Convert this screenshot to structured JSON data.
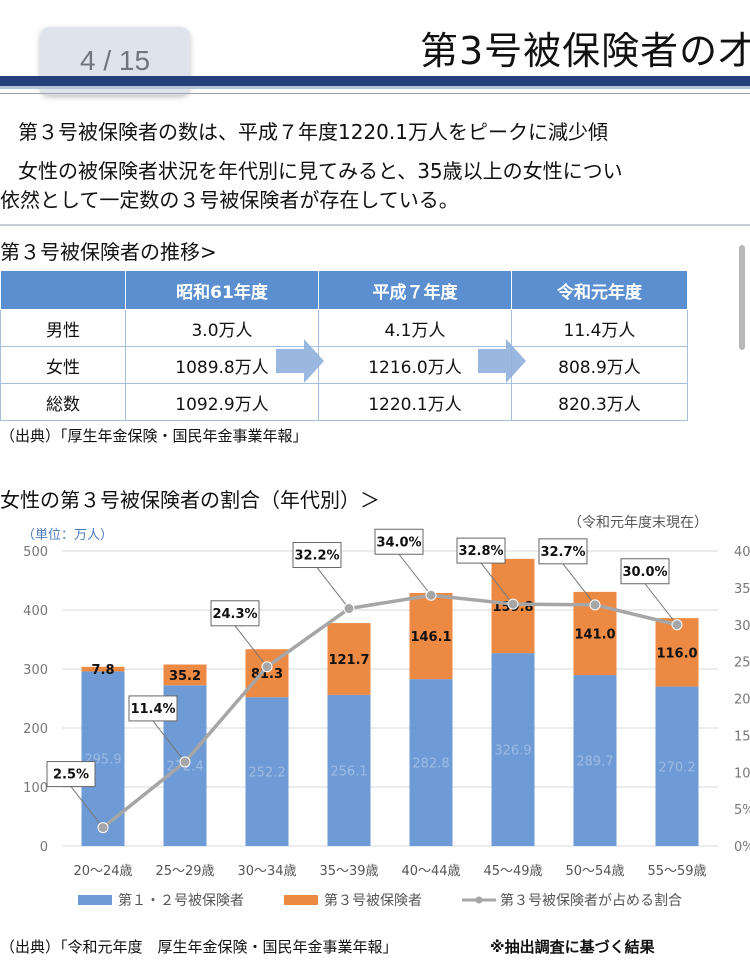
{
  "header": {
    "page_indicator": "4 / 15",
    "title": "第3号被保険者の",
    "title_last_char": "才"
  },
  "intro": {
    "line1": "第３号被保険者の数は、平成７年度1220.1万人をピークに減少傾",
    "line2": "女性の被保険者状況を年代別に見てみると、35歳以上の女性につい",
    "line3": "依然として一定数の３号被保険者が存在している。"
  },
  "table_section": {
    "heading": "第３号被保険者の推移>",
    "columns": [
      "",
      "昭和61年度",
      "平成７年度",
      "令和元年度"
    ],
    "rows": [
      {
        "label": "男性",
        "values": [
          "3.0万人",
          "4.1万人",
          "11.4万人"
        ]
      },
      {
        "label": "女性",
        "values": [
          "1089.8万人",
          "1216.0万人",
          "808.9万人"
        ]
      },
      {
        "label": "総数",
        "values": [
          "1092.9万人",
          "1220.1万人",
          "820.3万人"
        ]
      }
    ],
    "source": "（出典）「厚生年金保険・国民年金事業年報」"
  },
  "chart_section": {
    "heading": "女性の第３号被保険者の割合（年代別）＞",
    "source": "（出典）「令和元年度　厚生年金保険・国民年金事業年報」",
    "footnote": "※抽出調査に基づく結果"
  },
  "chart_data": {
    "type": "bar",
    "stacked": true,
    "unit_label": "（単位：万人）",
    "as_of": "（令和元年度末現在）",
    "categories": [
      "20～24歳",
      "25～29歳",
      "30～34歳",
      "35～39歳",
      "40～44歳",
      "45～49歳",
      "50～54歳",
      "55～59歳"
    ],
    "series": [
      {
        "name": "第１・２号被保険者",
        "values": [
          295.9,
          272.4,
          252.2,
          256.1,
          282.8,
          326.9,
          289.7,
          270.2
        ],
        "color": "#6e9bd6"
      },
      {
        "name": "第３号被保険者",
        "values": [
          7.8,
          35.2,
          81.3,
          121.7,
          146.1,
          159.8,
          141.0,
          116.0
        ],
        "color": "#ec8a44"
      }
    ],
    "line_series": {
      "name": "第３号被保険者が占める割合",
      "values": [
        2.5,
        11.4,
        24.3,
        32.2,
        34.0,
        32.8,
        32.7,
        30.0
      ],
      "labels": [
        "2.5%",
        "11.4%",
        "24.3%",
        "32.2%",
        "34.0%",
        "32.8%",
        "32.7%",
        "30.0%"
      ],
      "color": "#a6a6a6"
    },
    "y_left": {
      "ylim": [
        0,
        500
      ],
      "ticks": [
        "0",
        "100",
        "200",
        "300",
        "400",
        "500"
      ]
    },
    "y_right": {
      "ylim": [
        0,
        40
      ],
      "ticks": [
        "0%",
        "5%",
        "10",
        "15",
        "20",
        "25",
        "30",
        "35",
        "40"
      ]
    },
    "ylabel": "",
    "xlabel": ""
  }
}
